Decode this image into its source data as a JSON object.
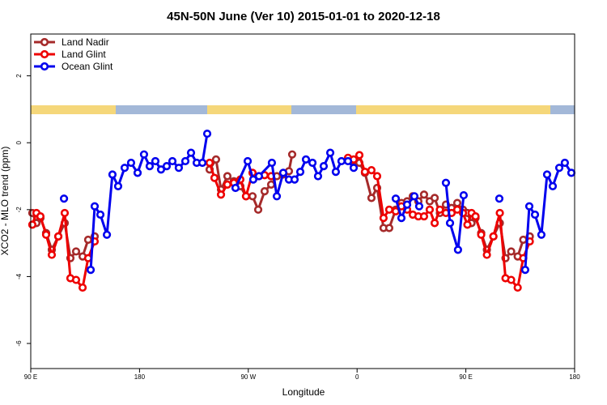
{
  "chart_data": {
    "type": "line",
    "title": "45N-50N June (Ver 10)   2015-01-01 to 2020-12-18",
    "xlabel": "Longitude",
    "ylabel": "XCO2 - MLO trend (ppm)",
    "xlim": [
      90,
      540
    ],
    "xticks": [
      {
        "value": 90,
        "label": "90 E"
      },
      180,
      {
        "value": 270,
        "label": "90 W"
      },
      {
        "value": 360,
        "label": "0"
      },
      {
        "value": 450,
        "label": "90 E"
      },
      {
        "value": 540,
        "label": "180"
      }
    ],
    "ylim": [
      -6.75,
      3.25
    ],
    "yticks": [
      -6,
      -4,
      -2,
      0,
      2
    ],
    "legend": "top-left",
    "series": [
      {
        "name": "Land Nadir",
        "color": "#a52a2a",
        "x": [
          91.3,
          94.7,
          98.0,
          102.7,
          107.4,
          112.8,
          118.1,
          122.8,
          127.5,
          132.9,
          137.5,
          142.9,
          null,
          238.0,
          243.3,
          247.4,
          252.7,
          258.1,
          263.4,
          268.1,
          273.5,
          278.2,
          283.5,
          288.9,
          293.6,
          298.9,
          303.6,
          306.3,
          null,
          357.2,
          361.9,
          366.5,
          371.9,
          376.6,
          381.9,
          386.6,
          392.0,
          396.7,
          401.4,
          406.1,
          410.7,
          415.4,
          420.1,
          424.2,
          428.5,
          433.5,
          438.2,
          442.9,
          447.6,
          451.3,
          454.7,
          458.0,
          462.7,
          467.4,
          472.8,
          478.1,
          482.8,
          487.5,
          492.9,
          497.5,
          502.9
        ],
        "values": [
          -2.1,
          -2.4,
          -2.25,
          -2.7,
          -3.2,
          -2.8,
          -2.4,
          -3.45,
          -3.25,
          -3.4,
          -2.9,
          -2.8,
          null,
          -0.8,
          -0.5,
          -1.4,
          -1.0,
          -1.15,
          -1.3,
          -1.6,
          -1.6,
          -2.0,
          -1.45,
          -1.25,
          -1.0,
          -0.95,
          -0.85,
          -0.35,
          null,
          -0.55,
          -0.6,
          -0.9,
          -1.65,
          -1.35,
          -2.55,
          -2.55,
          -2.0,
          -1.8,
          -1.75,
          -1.6,
          -1.75,
          -1.55,
          -1.75,
          -1.65,
          -2.1,
          -1.85,
          -1.95,
          -1.8,
          -2.0,
          -2.1,
          -2.4,
          -2.25,
          -2.7,
          -3.2,
          -2.8,
          -2.4,
          -3.45,
          -3.25,
          -3.4,
          -2.9,
          -2.8
        ]
      },
      {
        "name": "Land Glint",
        "color": "#ee0000",
        "x": [
          91.3,
          94.7,
          98.0,
          102.7,
          107.4,
          112.8,
          118.1,
          122.8,
          127.5,
          132.9,
          137.5,
          142.9,
          null,
          238.0,
          242.0,
          247.4,
          252.7,
          258.1,
          263.4,
          268.1,
          273.5,
          278.8,
          283.5,
          288.9,
          null,
          352.5,
          357.2,
          361.9,
          366.5,
          371.9,
          376.6,
          381.9,
          386.6,
          392.0,
          396.7,
          401.4,
          406.1,
          410.7,
          415.4,
          420.1,
          424.2,
          428.5,
          433.5,
          438.2,
          442.9,
          447.6,
          451.3,
          454.7,
          458.0,
          462.7,
          467.4,
          472.8,
          478.1,
          482.8,
          487.5,
          492.9,
          497.5,
          502.9
        ],
        "values": [
          -2.45,
          -2.1,
          -2.2,
          -2.75,
          -3.35,
          -2.8,
          -2.1,
          -4.05,
          -4.1,
          -4.33,
          -3.45,
          -2.95,
          null,
          -0.6,
          -1.05,
          -1.55,
          -1.25,
          -1.2,
          -1.1,
          -1.6,
          -0.9,
          -1.0,
          -0.97,
          -1.0,
          null,
          -0.45,
          -0.5,
          -0.37,
          -0.87,
          -0.82,
          -1.0,
          -2.25,
          -2.0,
          -2.05,
          -1.9,
          -2.0,
          -2.15,
          -2.2,
          -2.2,
          -2.0,
          -2.4,
          -2.0,
          -2.1,
          -2.1,
          -2.0,
          -2.1,
          -2.45,
          -2.1,
          -2.2,
          -2.75,
          -3.35,
          -2.8,
          -2.1,
          -4.05,
          -4.1,
          -4.33,
          -3.45,
          -2.95
        ]
      },
      {
        "name": "Ocean Glint",
        "color": "#0000ee",
        "x": [
          117.5,
          null,
          139.6,
          142.9,
          147.6,
          153.0,
          157.6,
          162.3,
          167.7,
          173.0,
          178.4,
          183.7,
          188.4,
          193.1,
          197.8,
          202.5,
          207.2,
          212.5,
          217.9,
          222.6,
          227.3,
          232.0,
          236.0,
          null,
          259.4,
          269.5,
          274.1,
          278.8,
          289.5,
          293.6,
          298.9,
          303.6,
          308.3,
          313.0,
          317.7,
          323.1,
          327.7,
          332.4,
          337.8,
          342.4,
          347.1,
          352.5,
          357.2,
          null,
          392.0,
          396.7,
          401.4,
          407.4,
          411.4,
          null,
          433.5,
          436.9,
          443.5,
          448.2,
          null,
          477.7,
          null,
          499.1,
          502.5,
          507.2,
          512.5,
          517.2,
          521.9,
          527.3,
          531.9,
          537.3
        ],
        "values": [
          -1.67,
          null,
          -3.8,
          -1.9,
          -2.15,
          -2.75,
          -0.95,
          -1.3,
          -0.75,
          -0.6,
          -0.9,
          -0.35,
          -0.7,
          -0.55,
          -0.8,
          -0.7,
          -0.55,
          -0.75,
          -0.55,
          -0.3,
          -0.6,
          -0.6,
          0.27,
          null,
          -1.35,
          -0.55,
          -1.1,
          -1.0,
          -0.6,
          -1.6,
          -0.9,
          -1.1,
          -1.1,
          -0.87,
          -0.5,
          -0.6,
          -1.0,
          -0.7,
          -0.3,
          -0.87,
          -0.55,
          -0.55,
          -0.75,
          null,
          -1.67,
          -2.25,
          -1.85,
          -1.6,
          -1.9,
          null,
          -1.2,
          -2.4,
          -3.2,
          -1.57,
          null,
          -1.67,
          null,
          -3.8,
          -1.9,
          -2.15,
          -2.75,
          -0.95,
          -1.3,
          -0.75,
          -0.6,
          -0.9
        ]
      }
    ]
  }
}
